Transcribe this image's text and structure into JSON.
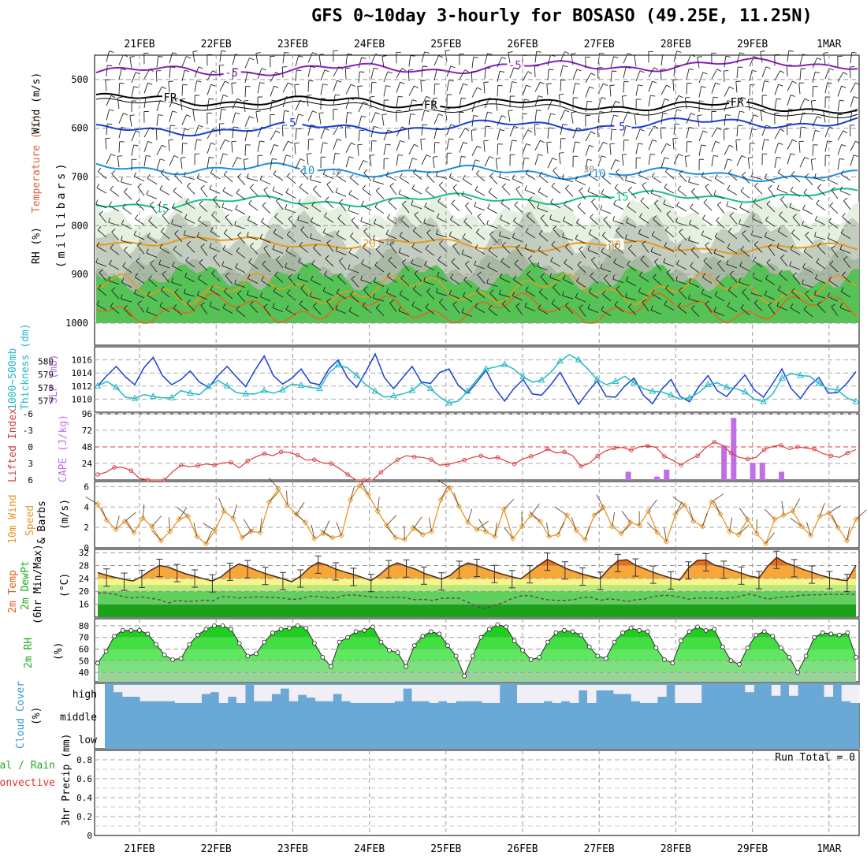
{
  "title": "GFS 0~10day 3-hourly for BOSASO (49.25E, 11.25N)",
  "colors": {
    "purple": "#8a1dbf",
    "black": "#000000",
    "blue": "#1a3fd6",
    "lightblue": "#1e90e0",
    "teal": "#14c08c",
    "orange": "#e89a1a",
    "darkorange": "#e06a1a",
    "rh_green": "#55c255",
    "rh_gray": "#c2ccbf",
    "rh_light": "#e6f0e1",
    "slp": "#1a3fd6",
    "thick": "#25b8c4",
    "li": "#d93c3c",
    "cape": "#c16ee6",
    "wind10": "#e8962a",
    "cloud": "#6aa8d6",
    "cloud_bg": "#f2eef5",
    "precip_total": "#22aa22",
    "precip_conv": "#e53030"
  },
  "chart_data": [
    {
      "panel": "upper_air",
      "type": "contour",
      "x": [
        "21FEB",
        "22FEB",
        "23FEB",
        "24FEB",
        "25FEB",
        "26FEB",
        "27FEB",
        "28FEB",
        "29FEB",
        "1MAR"
      ],
      "ylabel": "(millibars)",
      "ylabel_left": [
        "RH (%)",
        "Temperature (°C)",
        "Wind (m/s)"
      ],
      "yticks": [
        500,
        600,
        700,
        800,
        900,
        1000
      ],
      "ylim": [
        450,
        1000
      ],
      "temperature_contours": [
        {
          "label": "-5",
          "level": 485,
          "labels_at": [
            "21FEB+3",
            "28FEB-3"
          ],
          "color_key": "purple"
        },
        {
          "label": "FR",
          "level": 540,
          "labels_at": [
            "21FEB+2",
            "24FEB+5",
            "28FEB+8"
          ],
          "color_key": "black"
        },
        {
          "label": "5",
          "level": 605,
          "labels_at": [
            "23FEB+1",
            "27FEB+3"
          ],
          "color_key": "blue"
        },
        {
          "label": "10",
          "level": 680,
          "labels_at": [
            "23FEB+2",
            "26FEB+6"
          ],
          "color_key": "lightblue"
        },
        {
          "label": "15",
          "level": 755,
          "labels_at": [
            "21FEB+2",
            "27FEB+3"
          ],
          "color_key": "teal"
        },
        {
          "label": "20",
          "level": 830,
          "labels_at": [
            "24FEB+1",
            "28FEB-7"
          ],
          "color_key": "orange"
        }
      ],
      "rh_shading": [
        "70",
        "50",
        "30",
        "10"
      ],
      "contour_labels_gray": [
        "10",
        "30",
        "10",
        "30",
        "10",
        "30"
      ]
    },
    {
      "panel": "slp_thickness",
      "type": "line",
      "ylabel_left": "1000~500mb Thickness (dm)",
      "ylabel_right": "SLP (mb)",
      "thickness_ticks": [
        "580",
        "579",
        "578",
        "577"
      ],
      "slp_ticks": [
        "1016",
        "1014",
        "1012",
        "1010"
      ],
      "ylim_slp": [
        1008,
        1018
      ],
      "series": [
        {
          "name": "SLP (mb)",
          "color_key": "slp",
          "values": [
            1012.0,
            1013.6,
            1015.0,
            1013.4,
            1012.2,
            1014.8,
            1016.4,
            1013.6,
            1012.2,
            1013.0,
            1014.3,
            1012.6,
            1011.8,
            1013.6,
            1015.0,
            1013.4,
            1011.9,
            1014.4,
            1016.6,
            1013.6,
            1012.3,
            1013.2,
            1014.6,
            1012.5,
            1012.2,
            1014.6,
            1016.0,
            1013.3,
            1011.8,
            1014.2,
            1016.9,
            1013.3,
            1011.6,
            1013.3,
            1015.0,
            1012.6,
            1012.4,
            1014.1,
            1014.6,
            1012.1,
            1010.9,
            1012.6,
            1014.4,
            1011.6,
            1009.7,
            1011.6,
            1013.0,
            1010.8,
            1010.6,
            1012.2,
            1014.1,
            1011.6,
            1009.2,
            1011.1,
            1012.8,
            1010.4,
            1010.3,
            1012.0,
            1013.2,
            1010.6,
            1009.3,
            1011.5,
            1013.0,
            1010.4,
            1009.6,
            1011.9,
            1013.6,
            1011.3,
            1010.4,
            1012.1,
            1013.7,
            1011.4,
            1010.3,
            1012.4,
            1014.6,
            1011.6,
            1010.1,
            1012.1,
            1013.3,
            1010.9,
            1011.0,
            1012.4,
            1014.2
          ]
        },
        {
          "name": "Thickness (dm)",
          "color_key": "thick",
          "values": [
            1012.0,
            1012.7,
            1011.8,
            1010.3,
            1010.1,
            1010.7,
            1010.4,
            1010.2,
            1010.2,
            1011.3,
            1010.9,
            1010.7,
            1011.9,
            1012.9,
            1012.0,
            1011.0,
            1010.8,
            1010.8,
            1011.3,
            1010.9,
            1011.4,
            1012.3,
            1012.1,
            1011.8,
            1011.6,
            1014.0,
            1015.2,
            1014.8,
            1013.6,
            1012.2,
            1011.2,
            1010.3,
            1010.5,
            1010.8,
            1011.3,
            1012.5,
            1011.6,
            1010.3,
            1009.4,
            1009.7,
            1011.2,
            1013.0,
            1014.6,
            1014.9,
            1015.3,
            1014.6,
            1013.4,
            1012.6,
            1012.9,
            1014.1,
            1015.8,
            1016.8,
            1016.0,
            1014.6,
            1013.0,
            1012.2,
            1012.7,
            1013.5,
            1012.5,
            1011.6,
            1011.2,
            1011.1,
            1010.6,
            1010.0,
            1010.2,
            1011.0,
            1012.2,
            1012.5,
            1011.8,
            1011.6,
            1011.1,
            1010.0,
            1009.6,
            1010.8,
            1013.2,
            1013.9,
            1013.6,
            1013.5,
            1012.4,
            1011.6,
            1011.4,
            1010.2,
            1009.6
          ]
        }
      ]
    },
    {
      "panel": "lifted_index_cape",
      "type": "line+bar",
      "ylabel_left": "Lifted Index",
      "ylabel_right": "CAPE (J/kg)",
      "li_ticks": [
        "-6",
        "-3",
        "0",
        "3",
        "6"
      ],
      "cape_ticks": [
        "96",
        "72",
        "48",
        "24"
      ],
      "series": [
        {
          "name": "Lifted Index",
          "color_key": "li",
          "values": [
            5.0,
            4.6,
            3.7,
            3.7,
            4.3,
            5.7,
            6.0,
            6.0,
            6.0,
            4.5,
            3.3,
            3.6,
            3.4,
            3.1,
            3.3,
            2.9,
            2.8,
            3.8,
            2.5,
            1.8,
            1.2,
            1.6,
            0.9,
            1.0,
            1.5,
            2.4,
            2.3,
            2.9,
            3.0,
            3.9,
            5.0,
            6.0,
            6.0,
            6.0,
            4.6,
            3.4,
            2.3,
            1.6,
            1.8,
            1.9,
            2.3,
            3.3,
            3.2,
            2.8,
            2.4,
            1.9,
            1.6,
            2.1,
            1.9,
            2.6,
            3.1,
            2.2,
            1.7,
            1.2,
            0.4,
            1.1,
            0.9,
            1.6,
            3.5,
            3.0,
            1.6,
            0.7,
            0.2,
            0.1,
            0.6,
            0.0,
            -0.2,
            0.1,
            1.7,
            2.4,
            3.3,
            2.3,
            1.6,
            0.1,
            -0.9,
            -0.3,
            1.1,
            1.9,
            2.2,
            1.9,
            0.5,
            -0.1,
            -0.3,
            0.5,
            0.0,
            0.2,
            0.4,
            1.2,
            1.6,
            1.9,
            1.1,
            0.5
          ]
        },
        {
          "name": "CAPE (J/kg)",
          "color_key": "cape",
          "bars": [
            {
              "x": "27FEB+9",
              "value": 12
            },
            {
              "x": "27FEB+18",
              "value": 5
            },
            {
              "x": "27FEB+21",
              "value": 15
            },
            {
              "x": "28FEB+15",
              "value": 50
            },
            {
              "x": "28FEB+18",
              "value": 90
            },
            {
              "x": "29FEB+0",
              "value": 25
            },
            {
              "x": "29FEB+3",
              "value": 25
            },
            {
              "x": "29FEB+9",
              "value": 12
            }
          ]
        }
      ]
    },
    {
      "panel": "wind10m",
      "type": "line",
      "ylabel_left": "10m Wind Speed & Barbs",
      "ylabel_right": "(m/s)",
      "yticks": [
        "6",
        "4",
        "2",
        "0"
      ],
      "ylim": [
        0,
        6.5
      ],
      "series": [
        {
          "name": "10m Wind Speed",
          "color_key": "wind10",
          "values": [
            4.3,
            2.7,
            1.8,
            2.6,
            1.5,
            2.9,
            2.1,
            0.7,
            1.6,
            2.8,
            3.1,
            1.1,
            0.4,
            1.7,
            3.6,
            2.9,
            1.0,
            1.6,
            1.5,
            4.5,
            5.8,
            4.2,
            3.3,
            2.5,
            0.9,
            1.4,
            1.0,
            1.2,
            4.7,
            6.1,
            5.2,
            3.6,
            2.2,
            1.0,
            0.8,
            1.9,
            1.3,
            1.6,
            4.7,
            5.9,
            4.1,
            2.5,
            1.8,
            1.6,
            1.1,
            3.8,
            0.9,
            2.1,
            3.2,
            2.6,
            1.1,
            1.3,
            3.2,
            1.7,
            0.8,
            3.2,
            4.0,
            2.1,
            1.4,
            2.5,
            2.2,
            3.6,
            1.5,
            0.6,
            3.3,
            4.2,
            2.6,
            2.1,
            4.5,
            3.3,
            1.6,
            1.3,
            2.8,
            1.4,
            0.4,
            2.8,
            3.2,
            3.6,
            2.1,
            1.2,
            3.1,
            3.4,
            2.0,
            0.7,
            2.8
          ]
        }
      ]
    },
    {
      "panel": "temp2m",
      "type": "area+line",
      "ylabel_left": [
        "2m Temp",
        "2m DewPt",
        "(6hr Min/Max)"
      ],
      "ylabel_right": "(°C)",
      "yticks": [
        "32",
        "28",
        "24",
        "20",
        "16"
      ],
      "ylim": [
        12,
        33
      ],
      "series": [
        {
          "name": "2m Temp",
          "values": [
            25.8,
            25.0,
            24.3,
            23.7,
            23.2,
            24.6,
            26.5,
            28.0,
            27.5,
            26.4,
            25.4,
            24.7,
            23.9,
            23.2,
            24.5,
            26.8,
            28.5,
            27.6,
            26.5,
            25.5,
            24.7,
            23.9,
            23.0,
            24.7,
            27.3,
            29.0,
            28.1,
            26.9,
            26.0,
            25.2,
            24.3,
            23.3,
            25.2,
            27.6,
            28.8,
            27.8,
            26.9,
            25.6,
            24.7,
            23.8,
            25.0,
            27.4,
            28.8,
            28.0,
            27.0,
            26.1,
            25.2,
            24.5,
            23.9,
            26.0,
            28.0,
            29.9,
            28.6,
            27.2,
            26.2,
            25.3,
            24.6,
            24.0,
            27.1,
            29.5,
            29.8,
            28.1,
            27.0,
            25.9,
            25.0,
            24.1,
            23.5,
            27.2,
            29.6,
            29.7,
            28.1,
            27.4,
            26.5,
            25.6,
            24.7,
            24.2,
            27.8,
            30.5,
            28.9,
            27.9,
            26.8,
            25.9,
            25.0,
            24.2,
            23.6,
            23.3,
            28.1
          ]
        },
        {
          "name": "2m DewPt",
          "values": [
            19.5,
            19.5,
            19.0,
            18.3,
            17.9,
            18.3,
            17.8,
            17.4,
            16.4,
            17.2,
            16.9,
            16.9,
            17.3,
            17.0,
            18.3,
            18.3,
            17.9,
            18.1,
            18.3,
            18.2,
            18.1,
            17.9,
            17.5,
            17.7,
            18.5,
            18.4,
            18.0,
            17.9,
            18.8,
            18.9,
            18.6,
            18.3,
            18.1,
            18.0,
            18.2,
            17.9,
            17.4,
            17.5,
            17.2,
            17.8,
            17.9,
            17.8,
            16.6,
            15.3,
            14.7,
            15.7,
            16.5,
            17.8,
            18.6,
            18.7,
            17.9,
            17.4,
            17.2,
            17.2,
            17.4,
            18.1,
            18.1,
            17.2,
            17.7,
            17.4,
            16.8,
            17.4,
            17.6,
            18.4,
            18.7,
            18.7,
            18.2,
            17.6,
            17.9,
            17.9,
            17.9,
            17.7,
            18.0,
            18.6,
            19.1,
            18.4,
            17.6,
            18.0,
            18.3,
            18.5,
            18.8,
            18.9,
            18.9,
            19.1,
            19.0,
            19.1,
            19.1
          ]
        }
      ]
    },
    {
      "panel": "rh2m",
      "type": "area",
      "ylabel_left": "2m RH",
      "ylabel_right": "(%)",
      "yticks": [
        "80",
        "70",
        "60",
        "50",
        "40"
      ],
      "ylim": [
        32,
        86
      ],
      "series": [
        {
          "name": "2m RH",
          "values": [
            48,
            58,
            71,
            76,
            76,
            76,
            73,
            64,
            55,
            51,
            52,
            64,
            72,
            77,
            80,
            80,
            77,
            65,
            54,
            56,
            66,
            74,
            77,
            78,
            80,
            78,
            65,
            53,
            45,
            66,
            70,
            75,
            76,
            79,
            66,
            59,
            57,
            45,
            63,
            71,
            75,
            73,
            63,
            54,
            37,
            54,
            70,
            77,
            81,
            79,
            67,
            59,
            51,
            53,
            66,
            74,
            76,
            75,
            72,
            62,
            54,
            52,
            66,
            74,
            78,
            76,
            75,
            61,
            51,
            48,
            67,
            75,
            79,
            76,
            77,
            62,
            50,
            47,
            61,
            72,
            75,
            71,
            61,
            53,
            40,
            54,
            70,
            74,
            73,
            72,
            74,
            53
          ]
        }
      ]
    },
    {
      "panel": "cloud_cover",
      "type": "area",
      "ylabel_left": "Cloud Cover",
      "ylabel_right": "(%)",
      "yticks": [
        "high",
        "middle",
        "low"
      ],
      "series": [
        {
          "name": "High cloud cover",
          "values": [
            100,
            60,
            35,
            35,
            10,
            10,
            10,
            10,
            0,
            0,
            0,
            50,
            60,
            0,
            35,
            0,
            100,
            10,
            10,
            50,
            80,
            10,
            45,
            30,
            10,
            10,
            50,
            10,
            0,
            0,
            0,
            0,
            0,
            10,
            80,
            10,
            10,
            0,
            10,
            0,
            10,
            10,
            10,
            0,
            0,
            100,
            100,
            0,
            0,
            0,
            10,
            0,
            10,
            0,
            70,
            0,
            70,
            70,
            50,
            50,
            10,
            0,
            0,
            35,
            100,
            0,
            0,
            0,
            100,
            100,
            100,
            100,
            100,
            60,
            100,
            100,
            40,
            100,
            40,
            100,
            100,
            100,
            35,
            100,
            10,
            0
          ]
        }
      ],
      "ylim": [
        0,
        100
      ]
    },
    {
      "panel": "precip",
      "type": "bar",
      "ylabel_left": "3hr Precip (mm)",
      "ylabel_legend": [
        "Total / Rain",
        "Convective"
      ],
      "yticks": [
        "0.8",
        "0.6",
        "0.4",
        "0.2",
        "0"
      ],
      "ylim": [
        0,
        0.9
      ],
      "run_total": "Run Total = 0",
      "values": []
    }
  ],
  "dates_top": [
    "21FEB",
    "22FEB",
    "23FEB",
    "24FEB",
    "25FEB",
    "26FEB",
    "27FEB",
    "28FEB",
    "29FEB",
    "1MAR"
  ],
  "dates_bottom": [
    "21FEB",
    "22FEB",
    "23FEB",
    "24FEB",
    "25FEB",
    "26FEB",
    "27FEB",
    "28FEB",
    "29FEB",
    "1MAR"
  ],
  "labels": {
    "ua_rh": "RH (%)",
    "ua_temp": "Temperature (°C)",
    "ua_wind": "Wind (m/s)",
    "ua_unit": "(millibars)",
    "slp_thick": "1000~500mb",
    "slp_thick2": "Thickness (dm)",
    "slp_right": "SLP (mb)",
    "li": "Lifted Index",
    "cape": "CAPE (J/kg)",
    "wind10_1": "10m Wind",
    "wind10_2": "Speed",
    "wind10_3": "& Barbs",
    "wind10_unit": "(m/s)",
    "t2_1": "2m Temp",
    "t2_2": "2m DewPt",
    "t2_3": "(6hr Min/Max)",
    "t2_unit": "(°C)",
    "rh2": "2m RH",
    "rh2_unit": "(%)",
    "cc": "Cloud Cover",
    "cc_unit": "(%)",
    "pr_1": "Total / Rain",
    "pr_2": "Convective",
    "pr_3": "3hr Precip (mm)"
  }
}
